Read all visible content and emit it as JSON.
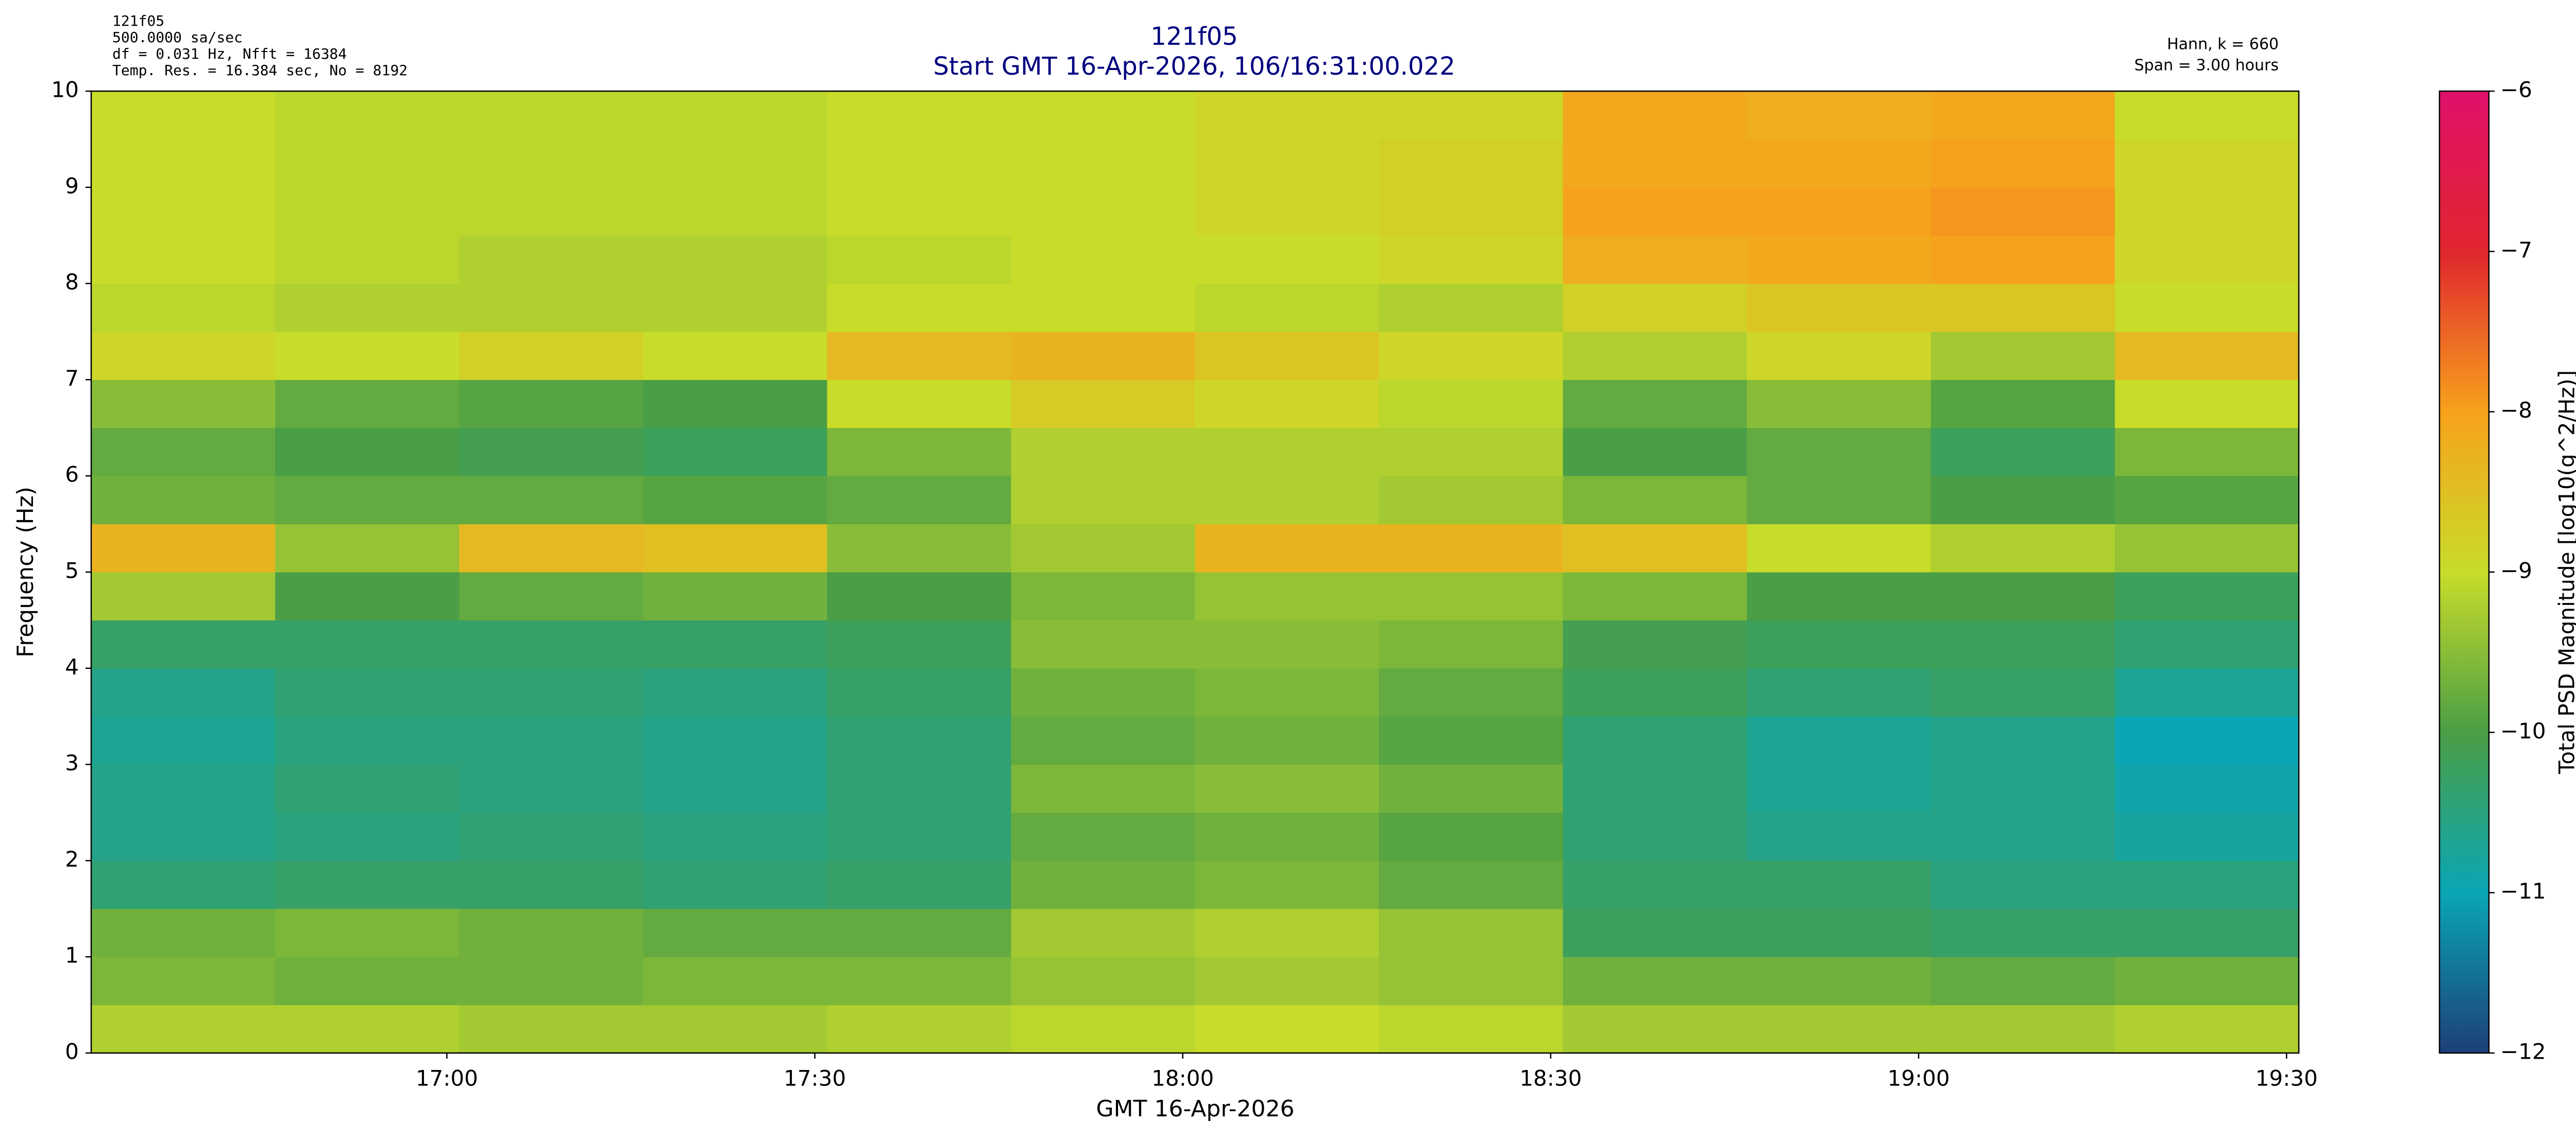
{
  "chart_data": {
    "type": "heatmap",
    "title": "121f05",
    "subtitle": "Start GMT 16-Apr-2026, 106/16:31:00.022",
    "notes_left": [
      "121f05",
      "500.0000 sa/sec",
      "df = 0.031 Hz,  Nfft = 16384",
      "Temp. Res. = 16.384 sec, No = 8192"
    ],
    "notes_right": [
      "Hann, k = 660",
      "Span = 3.00 hours"
    ],
    "x_label": "GMT 16-Apr-2026",
    "y_label": "Frequency (Hz)",
    "colorbar_label": "Total PSD Magnitude [log10(g^2/Hz)]",
    "xlim": [
      991,
      1171
    ],
    "ylim": [
      0,
      10
    ],
    "xticks": [
      {
        "value": 1020,
        "label": "17:00"
      },
      {
        "value": 1050,
        "label": "17:30"
      },
      {
        "value": 1080,
        "label": "18:00"
      },
      {
        "value": 1110,
        "label": "18:30"
      },
      {
        "value": 1140,
        "label": "19:00"
      },
      {
        "value": 1170,
        "label": "19:30"
      }
    ],
    "yticks": [
      0,
      1,
      2,
      3,
      4,
      5,
      6,
      7,
      8,
      9,
      10
    ],
    "x_edges": [
      991,
      1006,
      1021,
      1036,
      1051,
      1066,
      1081,
      1096,
      1111,
      1126,
      1141,
      1156,
      1171
    ],
    "y_edges": [
      0,
      0.5,
      1,
      1.5,
      2,
      2.5,
      3,
      3.5,
      4,
      4.5,
      5,
      5.5,
      6,
      6.5,
      7,
      7.5,
      8,
      8.5,
      9,
      9.5,
      10
    ],
    "z": [
      [
        -9.2,
        -9.2,
        -9.3,
        -9.3,
        -9.2,
        -9.1,
        -9.0,
        -9.1,
        -9.3,
        -9.3,
        -9.3,
        -9.2
      ],
      [
        -9.6,
        -9.7,
        -9.7,
        -9.6,
        -9.6,
        -9.4,
        -9.3,
        -9.4,
        -9.7,
        -9.7,
        -9.8,
        -9.7
      ],
      [
        -9.7,
        -9.6,
        -9.7,
        -9.8,
        -9.8,
        -9.3,
        -9.2,
        -9.4,
        -10.2,
        -10.2,
        -10.3,
        -10.3
      ],
      [
        -10.4,
        -10.3,
        -10.3,
        -10.4,
        -10.3,
        -9.7,
        -9.6,
        -9.8,
        -10.3,
        -10.3,
        -10.5,
        -10.5
      ],
      [
        -10.6,
        -10.5,
        -10.4,
        -10.5,
        -10.4,
        -9.8,
        -9.7,
        -9.9,
        -10.4,
        -10.6,
        -10.6,
        -10.8
      ],
      [
        -10.6,
        -10.4,
        -10.5,
        -10.6,
        -10.4,
        -9.6,
        -9.5,
        -9.7,
        -10.4,
        -10.7,
        -10.6,
        -10.9
      ],
      [
        -10.7,
        -10.5,
        -10.5,
        -10.6,
        -10.4,
        -9.8,
        -9.7,
        -9.9,
        -10.4,
        -10.7,
        -10.6,
        -11.0
      ],
      [
        -10.6,
        -10.4,
        -10.4,
        -10.5,
        -10.3,
        -9.7,
        -9.6,
        -9.8,
        -10.2,
        -10.4,
        -10.3,
        -10.7
      ],
      [
        -10.3,
        -10.3,
        -10.3,
        -10.3,
        -10.2,
        -9.5,
        -9.5,
        -9.6,
        -10.1,
        -10.2,
        -10.2,
        -10.4
      ],
      [
        -9.3,
        -10.0,
        -9.8,
        -9.7,
        -10.0,
        -9.6,
        -9.4,
        -9.4,
        -9.6,
        -10.0,
        -10.0,
        -10.2
      ],
      [
        -8.3,
        -9.4,
        -8.4,
        -8.5,
        -9.5,
        -9.3,
        -8.3,
        -8.3,
        -8.5,
        -9.0,
        -9.2,
        -9.4
      ],
      [
        -9.7,
        -9.8,
        -9.8,
        -9.9,
        -9.8,
        -9.2,
        -9.2,
        -9.3,
        -9.6,
        -9.8,
        -10.0,
        -9.9
      ],
      [
        -9.8,
        -10.0,
        -10.1,
        -10.2,
        -9.6,
        -9.2,
        -9.2,
        -9.2,
        -10.0,
        -9.8,
        -10.2,
        -9.6
      ],
      [
        -9.5,
        -9.8,
        -9.9,
        -10.0,
        -9.0,
        -8.7,
        -8.9,
        -9.1,
        -9.8,
        -9.5,
        -9.9,
        -9.0
      ],
      [
        -8.9,
        -9.0,
        -8.8,
        -9.0,
        -8.4,
        -8.3,
        -8.6,
        -8.9,
        -9.2,
        -8.9,
        -9.3,
        -8.4
      ],
      [
        -9.1,
        -9.2,
        -9.2,
        -9.2,
        -9.0,
        -9.0,
        -9.1,
        -9.2,
        -8.8,
        -8.6,
        -8.6,
        -9.0
      ],
      [
        -9.0,
        -9.1,
        -9.2,
        -9.2,
        -9.1,
        -9.0,
        -9.0,
        -8.9,
        -8.2,
        -8.1,
        -8.0,
        -8.9
      ],
      [
        -9.0,
        -9.1,
        -9.1,
        -9.1,
        -9.0,
        -9.0,
        -8.9,
        -8.8,
        -8.0,
        -8.0,
        -7.9,
        -8.9
      ],
      [
        -9.0,
        -9.1,
        -9.1,
        -9.1,
        -9.0,
        -9.0,
        -8.9,
        -8.8,
        -8.1,
        -8.1,
        -8.0,
        -8.9
      ],
      [
        -9.0,
        -9.1,
        -9.1,
        -9.1,
        -9.0,
        -9.0,
        -8.9,
        -8.9,
        -8.1,
        -8.2,
        -8.1,
        -9.0
      ]
    ],
    "zlim": [
      -12,
      -6
    ],
    "zticks": [
      {
        "value": -12,
        "label": "−12"
      },
      {
        "value": -11,
        "label": "−11"
      },
      {
        "value": -10,
        "label": "−10"
      },
      {
        "value": -9,
        "label": "−9"
      },
      {
        "value": -8,
        "label": "−8"
      },
      {
        "value": -7,
        "label": "−7"
      },
      {
        "value": -6,
        "label": "−6"
      }
    ],
    "colormap": [
      "#1d3f78",
      "#0aa6b5",
      "#4a9e45",
      "#c8dc2a",
      "#f7a21c",
      "#e0262e",
      "#e0106a"
    ]
  }
}
